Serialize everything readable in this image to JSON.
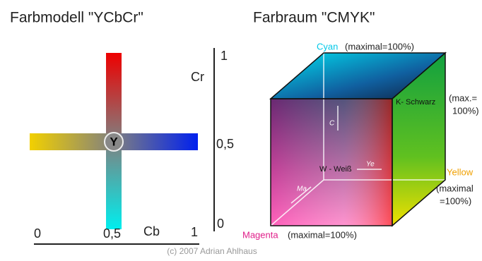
{
  "ycbcr": {
    "title": "Farbmodell  \"YCbCr\"",
    "center_label": "Y",
    "cr_axis": {
      "name": "Cr",
      "labels": [
        "1",
        "0,5",
        "0"
      ]
    },
    "cb_axis": {
      "name": "Cb",
      "labels": [
        "0",
        "0,5",
        "1"
      ]
    }
  },
  "cmyk": {
    "title": "Farbraum  \"CMYK\"",
    "cyan": {
      "name": "Cyan",
      "note": "(maximal=100%)"
    },
    "black": {
      "name": "K- Schwarz",
      "note": [
        "(max.=",
        "100%)"
      ]
    },
    "yellow": {
      "name": "Yellow",
      "note": [
        "(maximal",
        "=100%)"
      ]
    },
    "magenta": {
      "name": "Magenta",
      "note": "(maximal=100%)"
    },
    "white": "W - Weiß",
    "arrows": [
      "C",
      "Ye",
      "Ma"
    ]
  },
  "copyright": "(c) 2007 Adrian Ahlhaus"
}
